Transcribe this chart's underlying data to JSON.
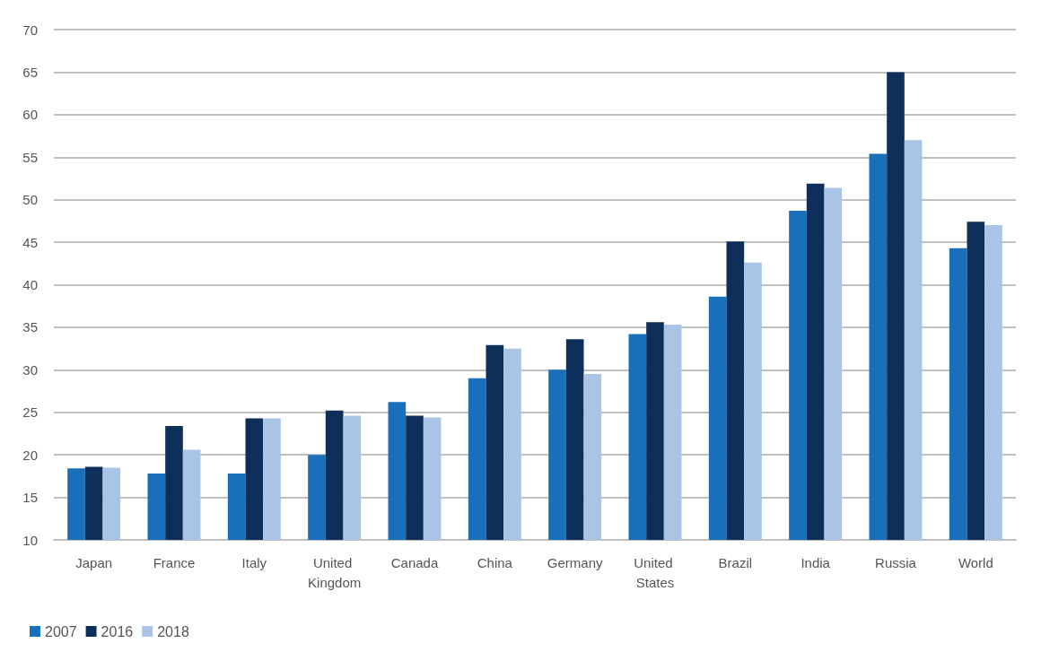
{
  "chart_data": {
    "type": "bar",
    "categories": [
      "Japan",
      "France",
      "Italy",
      "United Kingdom",
      "Canada",
      "China",
      "Germany",
      "United States",
      "Brazil",
      "India",
      "Russia",
      "World"
    ],
    "series": [
      {
        "name": "2007",
        "color": "#1a6fba",
        "values": [
          18.4,
          17.8,
          17.8,
          20.0,
          26.2,
          29.0,
          30.0,
          34.2,
          38.6,
          48.7,
          55.4,
          44.3
        ]
      },
      {
        "name": "2016",
        "color": "#0d2f5a",
        "values": [
          18.6,
          23.4,
          24.3,
          25.2,
          24.6,
          32.9,
          33.6,
          35.6,
          45.1,
          51.9,
          65.0,
          47.4
        ]
      },
      {
        "name": "2018",
        "color": "#a9c4e4",
        "values": [
          18.5,
          20.6,
          24.3,
          24.6,
          24.4,
          32.5,
          29.5,
          35.3,
          42.6,
          51.4,
          57.0,
          47.0
        ]
      }
    ],
    "ylim": [
      10,
      70
    ],
    "yticks": [
      10,
      15,
      20,
      25,
      30,
      35,
      40,
      45,
      50,
      55,
      60,
      65,
      70
    ],
    "grid": "y",
    "legend": "bottom left"
  }
}
